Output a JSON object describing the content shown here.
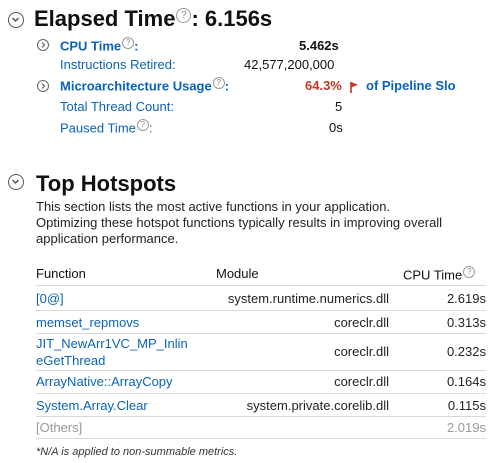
{
  "elapsed": {
    "label": "Elapsed Time",
    "value": ": 6.156s"
  },
  "metrics": {
    "cpu_time": {
      "label": "CPU Time",
      "value": "5.462s"
    },
    "instructions_retired": {
      "label": "Instructions Retired:",
      "value": "42,577,200,000"
    },
    "microarch": {
      "label": "Microarchitecture Usage",
      "value": "64.3%",
      "suffix": "of Pipeline Slo"
    },
    "thread_count": {
      "label": "Total Thread Count:",
      "value": "5"
    },
    "paused_time": {
      "label": "Paused Time",
      "value": "0s"
    }
  },
  "hotspots": {
    "title": "Top Hotspots",
    "description_lines": [
      "This section lists the most active functions in your application.",
      "Optimizing these hotspot functions typically results in improving overall",
      "application performance."
    ],
    "columns": {
      "function": "Function",
      "module": "Module",
      "cpu": "CPU Time"
    },
    "rows": [
      {
        "function": "[0@]",
        "module": "system.runtime.numerics.dll",
        "cpu": "2.619s"
      },
      {
        "function": "memset_repmovs",
        "module": "coreclr.dll",
        "cpu": "0.313s"
      },
      {
        "function_line1": "JIT_NewArr1VC_MP_Inlin",
        "function_line2": "eGetThread",
        "module": "coreclr.dll",
        "cpu": "0.232s"
      },
      {
        "function": "ArrayNative::ArrayCopy",
        "module": "coreclr.dll",
        "cpu": "0.164s"
      },
      {
        "function": "System.Array.Clear",
        "module": "system.private.corelib.dll",
        "cpu": "0.115s"
      },
      {
        "function": "[Others]",
        "module": "",
        "cpu": "2.019s"
      }
    ],
    "footnote": "*N/A is applied to non-summable metrics."
  },
  "icons": {
    "expand": "chevron-down-circle-icon",
    "subexpand": "chevron-right-circle-icon",
    "help": "question-mark-icon",
    "flag": "red-flag-icon"
  },
  "colors": {
    "link": "#0b63b5",
    "warning": "#c0392b"
  }
}
